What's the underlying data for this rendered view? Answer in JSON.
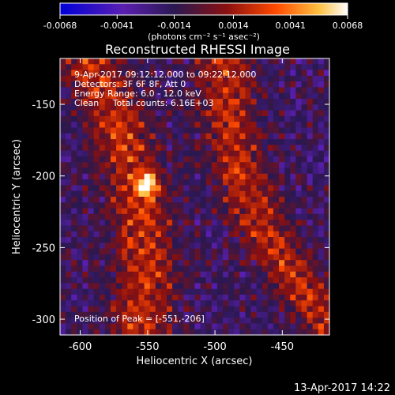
{
  "chart_data": {
    "type": "heatmap",
    "title": "Reconstructed RHESSI Image",
    "xlabel": "Heliocentric X (arcsec)",
    "ylabel": "Heliocentric Y (arcsec)",
    "xlim": [
      -615,
      -415
    ],
    "ylim": [
      -311,
      -118
    ],
    "x_ticks": [
      -600,
      -550,
      -500,
      -450
    ],
    "y_ticks": [
      -300,
      -250,
      -200,
      -150
    ],
    "colorbar": {
      "min": -0.0068,
      "max": 0.0068,
      "tick_values": [
        -0.0068,
        -0.0041,
        -0.0014,
        0.0014,
        0.0041,
        0.0068
      ],
      "tick_labels": [
        "-0.0068",
        "-0.0041",
        "-0.0014",
        "0.0014",
        "0.0041",
        "0.0068"
      ],
      "unit_label": "(photons cm⁻² s⁻¹ asec⁻²)",
      "colors": [
        "#0000d8",
        "#6a1fa8",
        "#3a1a6a",
        "#b01010",
        "#ff5000",
        "#ffd060",
        "#ffffff"
      ]
    },
    "annotations": [
      "9-Apr-2017 09:12:12.000 to 09:22:12.000",
      "Detectors: 3F 6F 8F, Att 0",
      "Energy Range: 6.0 - 12.0 keV",
      "Clean     Total counts: 6.16E+03"
    ],
    "peak_label": "Position of Peak = [-551,-206]",
    "peak": [
      -551,
      -206
    ],
    "grid": false
  },
  "timestamp": "13-Apr-2017 14:22"
}
